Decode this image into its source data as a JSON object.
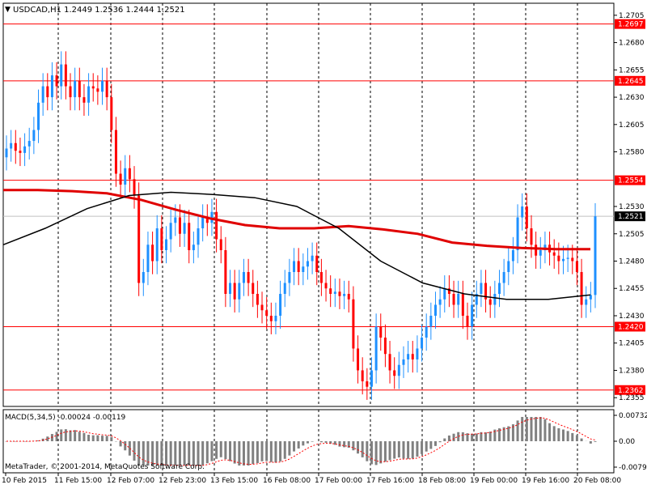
{
  "header": {
    "menu_glyph": "▼",
    "title": "USDCAD,H1  1.2449  1.2536  1.2444  1.2521"
  },
  "macd_label": "MACD(5,34,5) -0.00024 -0.00119",
  "copyright": "MetaTrader, © 2001-2014, MetaQuotes Software Corp.",
  "colors": {
    "bull": "#1e90ff",
    "bear": "#ff0000",
    "ma_red": "#e00000",
    "ma_black": "#000000",
    "hline": "#ff0000",
    "price_tag_bg": "#ff0000",
    "current_tag_bg": "#000000",
    "macd_hist": "#808080",
    "macd_signal": "#ff0000"
  },
  "chart_data": {
    "type": "candlestick",
    "symbol": "USDCAD",
    "timeframe": "H1",
    "ohlc": {
      "open": 1.2449,
      "high": 1.2536,
      "low": 1.2444,
      "close": 1.2521
    },
    "price_ticks": [
      "1.2705",
      "1.2680",
      "1.2655",
      "1.2630",
      "1.2605",
      "1.2580",
      "1.2530",
      "1.2505",
      "1.2480",
      "1.2455",
      "1.2430",
      "1.2405",
      "1.2380",
      "1.2355"
    ],
    "price_range": [
      1.2347,
      1.2716
    ],
    "horizontal_levels": [
      {
        "label": "1.2697",
        "value": 1.2697
      },
      {
        "label": "1.2645",
        "value": 1.2645
      },
      {
        "label": "1.2554",
        "value": 1.2554
      },
      {
        "label": "1.2420",
        "value": 1.242
      },
      {
        "label": "1.2362",
        "value": 1.2362
      }
    ],
    "current_price": {
      "label": "1.2521",
      "value": 1.2521
    },
    "time_labels": [
      "10 Feb 2015",
      "11 Feb 15:00",
      "12 Feb 07:00",
      "12 Feb 23:00",
      "13 Feb 15:00",
      "16 Feb 08:00",
      "17 Feb 00:00",
      "17 Feb 16:00",
      "18 Feb 08:00",
      "19 Feb 00:00",
      "19 Feb 16:00",
      "20 Feb 08:00"
    ],
    "macd_ticks": [
      "0.00732",
      "0.00",
      "-0.00797"
    ],
    "macd_range": [
      -0.00797,
      0.00732
    ],
    "closes": [
      1.2583,
      1.2588,
      1.2581,
      1.2579,
      1.2585,
      1.259,
      1.26,
      1.2625,
      1.264,
      1.263,
      1.265,
      1.264,
      1.266,
      1.264,
      1.263,
      1.2645,
      1.263,
      1.2625,
      1.264,
      1.2638,
      1.2635,
      1.2645,
      1.263,
      1.26,
      1.256,
      1.255,
      1.2565,
      1.2555,
      1.254,
      1.246,
      1.247,
      1.2495,
      1.248,
      1.251,
      1.249,
      1.25,
      1.2515,
      1.252,
      1.2505,
      1.2515,
      1.249,
      1.2495,
      1.251,
      1.252,
      1.2515,
      1.2525,
      1.25,
      1.249,
      1.245,
      1.246,
      1.2445,
      1.246,
      1.247,
      1.246,
      1.245,
      1.244,
      1.2435,
      1.243,
      1.2425,
      1.243,
      1.245,
      1.246,
      1.247,
      1.248,
      1.247,
      1.2475,
      1.248,
      1.2485,
      1.247,
      1.246,
      1.2455,
      1.245,
      1.2452,
      1.2448,
      1.245,
      1.2445,
      1.24,
      1.238,
      1.237,
      1.2365,
      1.238,
      1.242,
      1.241,
      1.2395,
      1.238,
      1.2375,
      1.2385,
      1.239,
      1.2395,
      1.239,
      1.24,
      1.241,
      1.242,
      1.243,
      1.244,
      1.2445,
      1.2455,
      1.245,
      1.244,
      1.245,
      1.243,
      1.242,
      1.244,
      1.245,
      1.246,
      1.2445,
      1.244,
      1.245,
      1.246,
      1.247,
      1.248,
      1.249,
      1.252,
      1.253,
      1.251,
      1.2495,
      1.2485,
      1.249,
      1.2495,
      1.2488,
      1.2485,
      1.248,
      1.2482,
      1.2483,
      1.248,
      1.247,
      1.244,
      1.2445,
      1.2449,
      1.2521
    ],
    "ma_red": [
      1.2545,
      1.2545,
      1.2544,
      1.2542,
      1.2536,
      1.2527,
      1.2519,
      1.2513,
      1.251,
      1.251,
      1.2512,
      1.2509,
      1.2505,
      1.2497,
      1.2494,
      1.2492,
      1.2491,
      1.2491
    ],
    "ma_black": [
      1.2495,
      1.251,
      1.2528,
      1.254,
      1.2543,
      1.2541,
      1.2538,
      1.253,
      1.251,
      1.248,
      1.246,
      1.245,
      1.2445,
      1.2445,
      1.2449
    ]
  }
}
